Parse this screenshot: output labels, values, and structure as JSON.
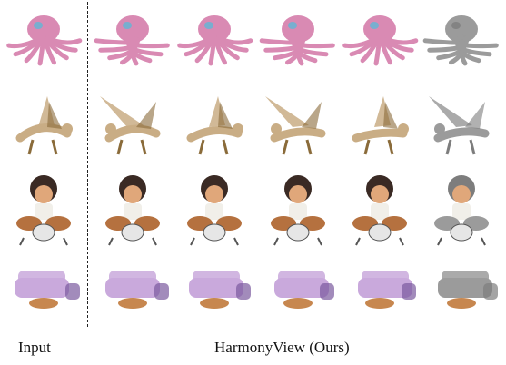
{
  "figure": {
    "captions": {
      "input": "Input",
      "method": "HarmonyView (Ours)"
    },
    "rows": [
      {
        "subject": "octopus",
        "color": "#d98ab3",
        "accent": "#5fb7d6"
      },
      {
        "subject": "dragon",
        "color": "#c9ad85",
        "accent": "#8a6b3a"
      },
      {
        "subject": "drummer-boy",
        "color": "#b5713f",
        "accent": "#3a2a24"
      },
      {
        "subject": "sofa-set",
        "color": "#c9a9dc",
        "accent": "#7b5a9e"
      }
    ],
    "columns": [
      "input",
      "view-1",
      "view-2",
      "view-3",
      "view-4",
      "mesh"
    ],
    "mesh_color": "#9b9b9b"
  }
}
